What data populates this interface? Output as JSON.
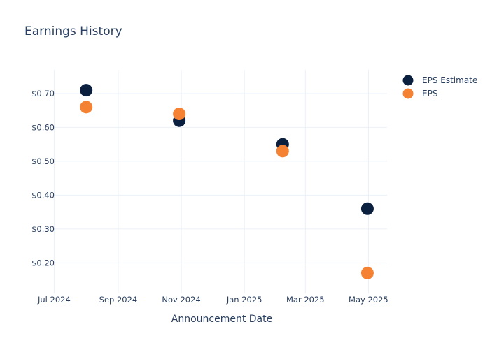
{
  "chart_data": {
    "type": "scatter",
    "title": "Earnings History",
    "xlabel": "Announcement Date",
    "ylabel": "",
    "x_ticks": [
      "Jul 2024",
      "Sep 2024",
      "Nov 2024",
      "Jan 2025",
      "Mar 2025",
      "May 2025"
    ],
    "x_tick_dates": [
      "2024-07-01",
      "2024-09-01",
      "2024-11-01",
      "2025-01-01",
      "2025-03-01",
      "2025-05-01"
    ],
    "x_range": [
      "2024-06-26",
      "2025-05-19"
    ],
    "y_ticks": [
      "$0.20",
      "$0.30",
      "$0.40",
      "$0.50",
      "$0.60",
      "$0.70"
    ],
    "y_tick_values": [
      0.2,
      0.3,
      0.4,
      0.5,
      0.6,
      0.7
    ],
    "ylim": [
      0.11,
      0.77
    ],
    "grid": true,
    "legend_position": "top-right",
    "series": [
      {
        "name": "EPS Estimate",
        "color": "#0b1f3f",
        "points": [
          {
            "x": "2024-08-01",
            "y": 0.71
          },
          {
            "x": "2024-10-30",
            "y": 0.62
          },
          {
            "x": "2025-02-07",
            "y": 0.55
          },
          {
            "x": "2025-04-30",
            "y": 0.36
          }
        ]
      },
      {
        "name": "EPS",
        "color": "#f58233",
        "points": [
          {
            "x": "2024-08-01",
            "y": 0.66
          },
          {
            "x": "2024-10-30",
            "y": 0.64
          },
          {
            "x": "2025-02-07",
            "y": 0.53
          },
          {
            "x": "2025-04-30",
            "y": 0.17
          }
        ]
      }
    ]
  }
}
